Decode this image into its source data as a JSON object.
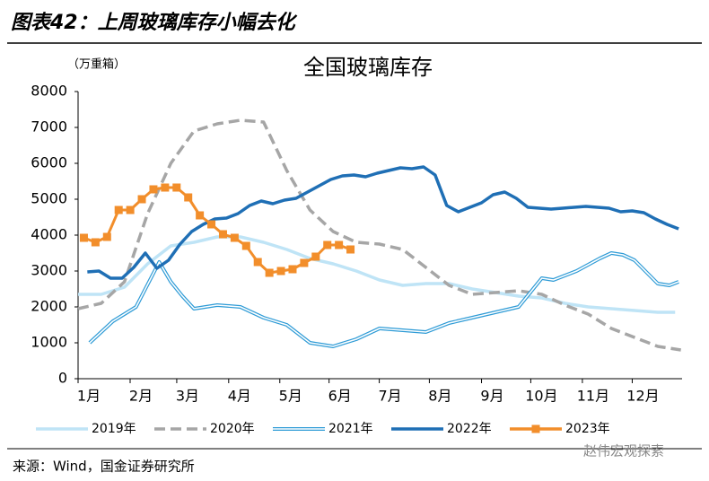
{
  "header": "图表42：上周玻璃库存小幅去化",
  "source": "来源：Wind，国金证券研究所",
  "watermark": "赵伟宏观探索",
  "chart_data": {
    "type": "line",
    "title": "全国玻璃库存",
    "y_unit": "（万重箱）",
    "xlim": [
      0,
      52.1
    ],
    "ylim": [
      0,
      8000
    ],
    "yticks": [
      0,
      1000,
      2000,
      3000,
      4000,
      5000,
      6000,
      7000,
      8000
    ],
    "xticks": [
      {
        "value": 0,
        "label": "1月"
      },
      {
        "value": 4.49,
        "label": "2月"
      },
      {
        "value": 8.51,
        "label": "3月"
      },
      {
        "value": 12.99,
        "label": "4月"
      },
      {
        "value": 17.4,
        "label": "5月"
      },
      {
        "value": 21.65,
        "label": "6月"
      },
      {
        "value": 25.98,
        "label": "7月"
      },
      {
        "value": 30.3,
        "label": "8月"
      },
      {
        "value": 34.8,
        "label": "9月"
      },
      {
        "value": 39.05,
        "label": "10月"
      },
      {
        "value": 43.5,
        "label": "11月"
      },
      {
        "value": 47.8,
        "label": "12月"
      }
    ],
    "series": [
      {
        "name": "2019年",
        "color": "#bfe4f6",
        "style": "solid",
        "x": [
          0,
          2,
          4,
          6,
          8,
          10,
          12,
          14,
          16,
          18,
          20,
          22,
          24,
          26,
          28,
          30,
          32,
          34,
          36,
          38,
          40,
          42,
          44,
          46,
          48,
          50,
          51.5
        ],
        "values": [
          2350,
          2350,
          2550,
          3200,
          3700,
          3800,
          3950,
          3950,
          3800,
          3600,
          3350,
          3200,
          3000,
          2750,
          2600,
          2650,
          2650,
          2500,
          2400,
          2300,
          2250,
          2100,
          2000,
          1950,
          1900,
          1850,
          1850
        ]
      },
      {
        "name": "2020年",
        "color": "#a6a6a6",
        "style": "dashed",
        "x": [
          0,
          2,
          4,
          6,
          8,
          10,
          12,
          14,
          16,
          18,
          20,
          22,
          24,
          26,
          28,
          30,
          32,
          34,
          36,
          38,
          40,
          42,
          44,
          46,
          48,
          50,
          52
        ],
        "values": [
          1950,
          2100,
          2700,
          4600,
          6000,
          6900,
          7100,
          7200,
          7150,
          5800,
          4700,
          4100,
          3800,
          3750,
          3600,
          3100,
          2600,
          2350,
          2400,
          2450,
          2350,
          2050,
          1800,
          1400,
          1150,
          900,
          800
        ]
      },
      {
        "name": "2021年",
        "color": "#2e9bd6",
        "style": "double",
        "x": [
          1,
          3,
          5,
          7,
          8,
          9,
          10,
          12,
          14,
          16,
          18,
          20,
          22,
          24,
          26,
          28,
          30,
          32,
          34,
          36,
          38,
          40,
          41,
          43,
          45,
          46,
          47,
          48,
          50,
          51,
          51.8
        ],
        "values": [
          1000,
          1600,
          2000,
          3250,
          2700,
          2300,
          1950,
          2050,
          2000,
          1700,
          1500,
          1000,
          900,
          1100,
          1400,
          1350,
          1300,
          1550,
          1700,
          1850,
          2000,
          2800,
          2750,
          3000,
          3350,
          3500,
          3450,
          3300,
          2650,
          2600,
          2700
        ]
      },
      {
        "name": "2022年",
        "color": "#1f6fb5",
        "style": "solid",
        "x": [
          0.8,
          1.8,
          2.8,
          3.8,
          4.8,
          5.8,
          6.8,
          7.8,
          8.8,
          9.8,
          10.8,
          11.8,
          12.8,
          13.8,
          14.8,
          15.8,
          16.8,
          17.8,
          18.8,
          19.8,
          20.8,
          21.8,
          22.8,
          23.8,
          24.8,
          25.8,
          26.8,
          27.8,
          28.8,
          29.8,
          30.8,
          31.8,
          32.8,
          33.8,
          34.8,
          35.8,
          36.8,
          37.8,
          38.8,
          39.8,
          40.8,
          41.8,
          42.8,
          43.8,
          44.8,
          45.8,
          46.8,
          47.8,
          48.8,
          49.8,
          50.8,
          51.8
        ],
        "values": [
          2975,
          3000,
          2800,
          2800,
          3100,
          3500,
          3075,
          3300,
          3750,
          4100,
          4300,
          4450,
          4475,
          4600,
          4825,
          4950,
          4875,
          4975,
          5025,
          5200,
          5375,
          5550,
          5650,
          5675,
          5625,
          5725,
          5800,
          5875,
          5850,
          5900,
          5675,
          4825,
          4650,
          4775,
          4900,
          5125,
          5200,
          5025,
          4775,
          4750,
          4725,
          4750,
          4775,
          4800,
          4775,
          4750,
          4650,
          4675,
          4625,
          4450,
          4300,
          4175
        ]
      },
      {
        "name": "2023年",
        "color": "#f28e2b",
        "style": "marker",
        "x": [
          0.5,
          1.5,
          2.5,
          3.5,
          4.5,
          5.5,
          6.5,
          7.5,
          8.5,
          9.5,
          10.5,
          11.5,
          12.5,
          13.5,
          14.5,
          15.5,
          16.5,
          17.5,
          18.5,
          19.5,
          20.5,
          21.5,
          22.5,
          23.5
        ],
        "values": [
          3925,
          3800,
          3950,
          4700,
          4700,
          5000,
          5275,
          5325,
          5325,
          5050,
          4550,
          4300,
          4025,
          3925,
          3700,
          3250,
          2950,
          3000,
          3050,
          3225,
          3400,
          3725,
          3725,
          3600
        ]
      }
    ]
  }
}
